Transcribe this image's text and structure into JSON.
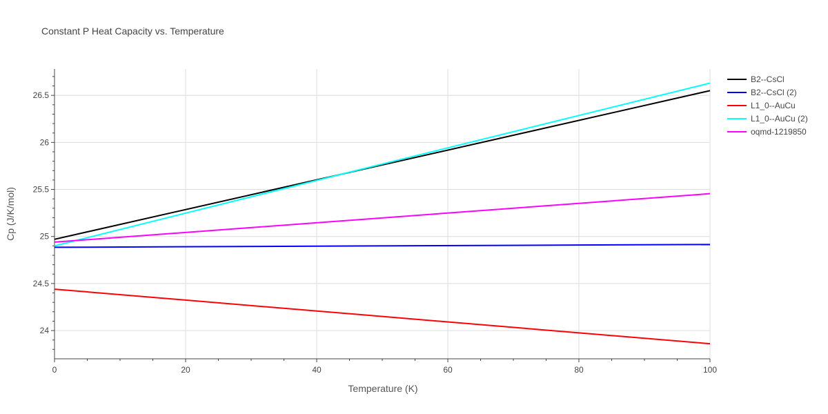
{
  "chart_data": {
    "type": "line",
    "title": "Constant P Heat Capacity vs. Temperature",
    "xlabel": "Temperature (K)",
    "ylabel": "Cp (J/K/mol)",
    "xlim": [
      0,
      100
    ],
    "ylim": [
      23.7,
      26.78
    ],
    "x_ticks": [
      0,
      20,
      40,
      60,
      80,
      100
    ],
    "x_tick_labels": [
      "0",
      "20",
      "40",
      "60",
      "80",
      "100"
    ],
    "y_ticks": [
      24,
      24.5,
      25,
      25.5,
      26,
      26.5
    ],
    "y_tick_labels": [
      "24",
      "24.5",
      "25",
      "25.5",
      "26",
      "26.5"
    ],
    "grid": true,
    "legend_position": "right",
    "series": [
      {
        "name": "B2--CsCl",
        "color": "#000000",
        "x": [
          0,
          100
        ],
        "y": [
          24.97,
          26.55
        ]
      },
      {
        "name": "B2--CsCl (2)",
        "color": "#0000ff",
        "x": [
          0,
          100
        ],
        "y": [
          24.885,
          24.915
        ]
      },
      {
        "name": "L1_0--AuCu",
        "color": "#ff0000",
        "x": [
          0,
          100
        ],
        "y": [
          24.44,
          23.86
        ]
      },
      {
        "name": "L1_0--AuCu (2)",
        "color": "#00ffff",
        "x": [
          0,
          50,
          100
        ],
        "y": [
          24.9,
          25.77,
          26.63
        ]
      },
      {
        "name": "oqmd-1219850",
        "color": "#ff00ff",
        "x": [
          0,
          100
        ],
        "y": [
          24.94,
          25.455
        ]
      }
    ]
  }
}
